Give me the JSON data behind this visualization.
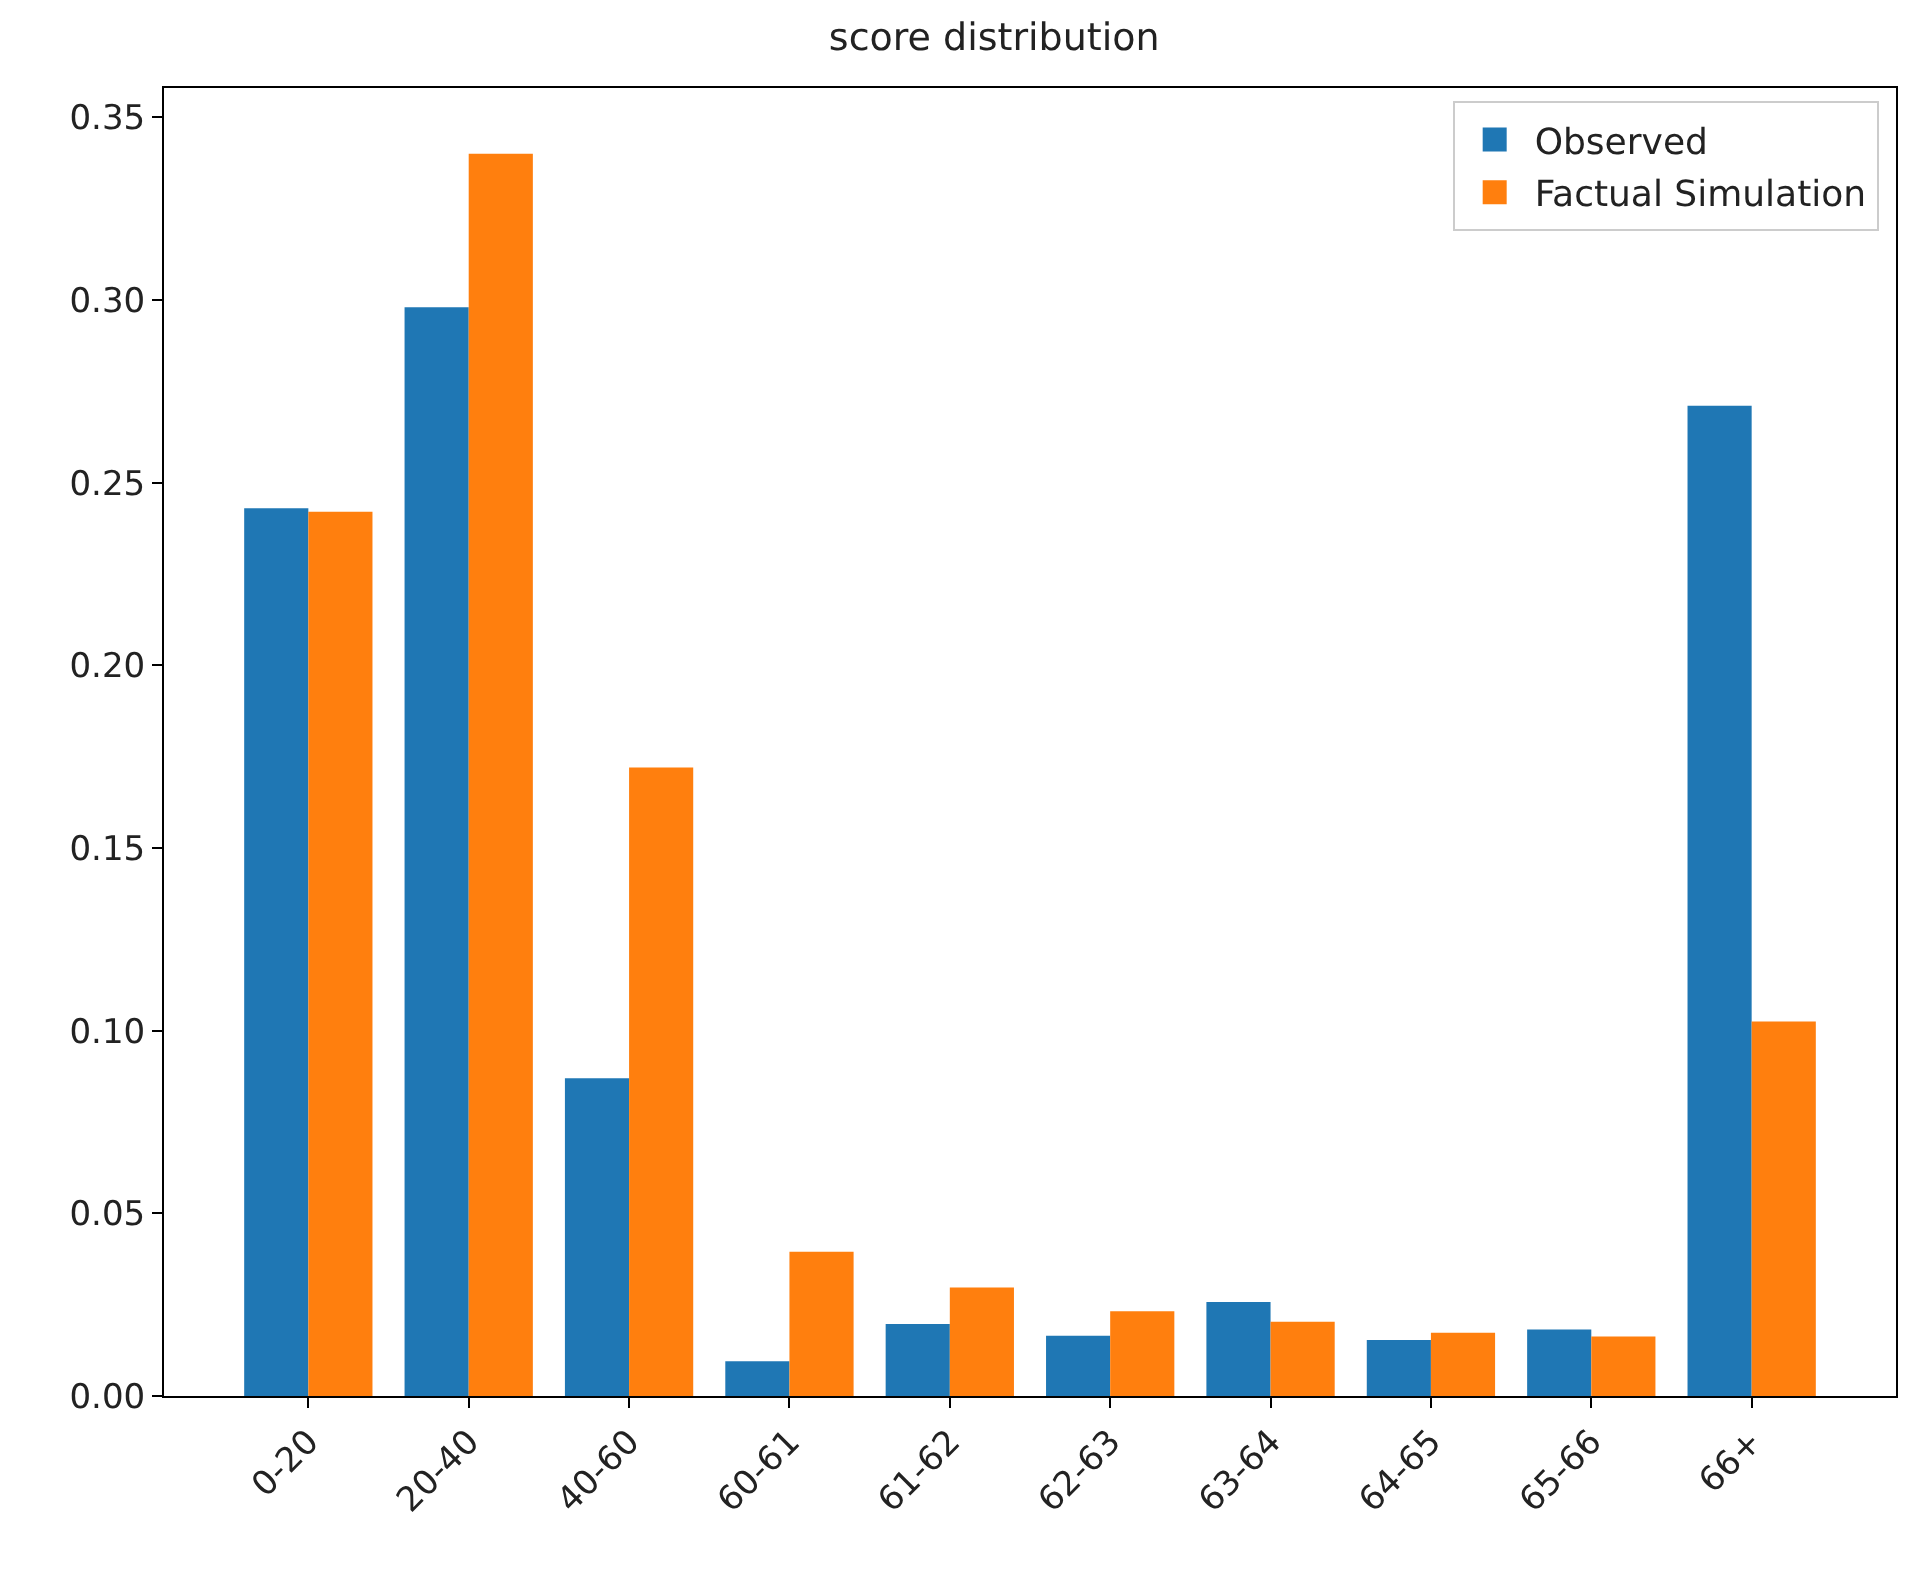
{
  "chart_data": {
    "type": "bar",
    "title": "score distribution",
    "categories": [
      "0-20",
      "20-40",
      "40-60",
      "60-61",
      "61-62",
      "62-63",
      "63-64",
      "64-65",
      "65-66",
      "66+"
    ],
    "series": [
      {
        "name": "Observed",
        "color": "#1f77b4",
        "values": [
          0.243,
          0.298,
          0.087,
          0.0095,
          0.0197,
          0.0165,
          0.0257,
          0.0153,
          0.0182,
          0.271
        ]
      },
      {
        "name": "Factual Simulation",
        "color": "#ff7f0e",
        "values": [
          0.242,
          0.34,
          0.172,
          0.0395,
          0.0297,
          0.0232,
          0.0203,
          0.0173,
          0.0163,
          0.1025
        ]
      }
    ],
    "ylim": [
      0,
      0.358
    ],
    "yticks": [
      {
        "value": 0,
        "label": "0.00"
      },
      {
        "value": 0.05,
        "label": "0.05"
      },
      {
        "value": 0.1,
        "label": "0.10"
      },
      {
        "value": 0.15,
        "label": "0.15"
      },
      {
        "value": 0.2,
        "label": "0.20"
      },
      {
        "value": 0.25,
        "label": "0.25"
      },
      {
        "value": 0.3,
        "label": "0.30"
      },
      {
        "value": 0.35,
        "label": "0.35"
      }
    ],
    "legend": "top right"
  }
}
